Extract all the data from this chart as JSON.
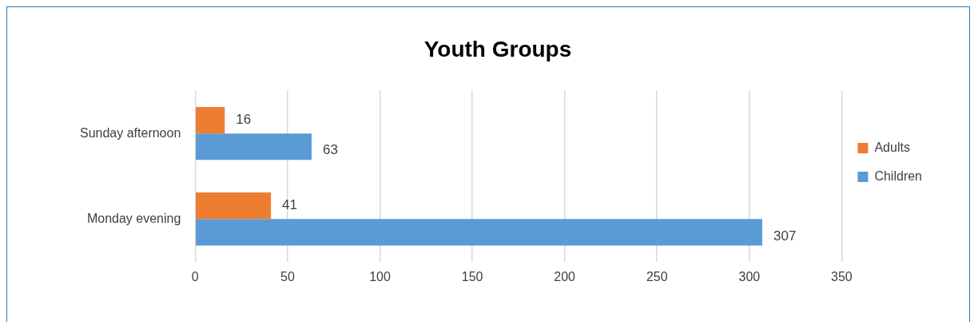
{
  "chart_data": {
    "type": "bar",
    "title": "Youth Groups",
    "orientation": "horizontal",
    "categories": [
      "Sunday afternoon",
      "Monday evening"
    ],
    "series": [
      {
        "name": "Adults",
        "color": "#ed7d31",
        "values": [
          16,
          41
        ]
      },
      {
        "name": "Children",
        "color": "#5b9bd5",
        "values": [
          63,
          307
        ]
      }
    ],
    "xlim": [
      0,
      350
    ],
    "xticks": [
      0,
      50,
      100,
      150,
      200,
      250,
      300,
      350
    ],
    "grid": "x",
    "legend": "right",
    "data_labels": true
  }
}
